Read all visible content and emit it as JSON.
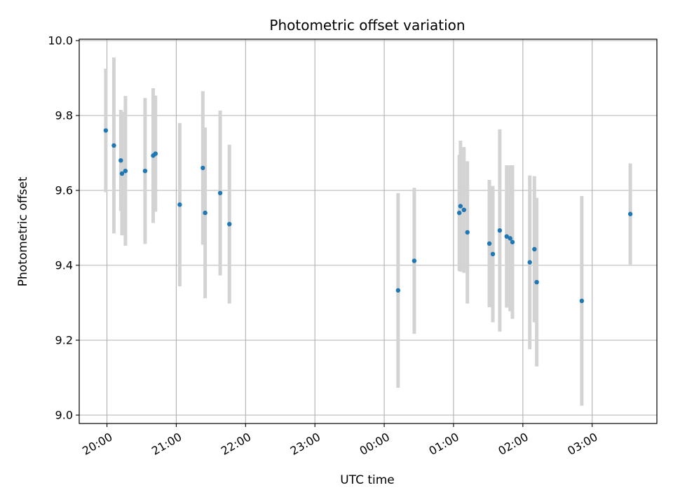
{
  "chart_data": {
    "type": "scatter",
    "title": "Photometric offset variation",
    "xlabel": "UTC time",
    "ylabel": "Photometric offset",
    "ylim": [
      9.0,
      10.0
    ],
    "xlim": [
      "19:36",
      "03:56"
    ],
    "grid": true,
    "legend": "none",
    "colors": {
      "point": "#1f77b4",
      "errorbar": "#d3d3d3",
      "grid": "#b0b0b0"
    },
    "x_ticks": [
      "20:00",
      "21:00",
      "22:00",
      "23:00",
      "00:00",
      "01:00",
      "02:00",
      "03:00"
    ],
    "y_ticks": [
      "9.0",
      "9.2",
      "9.4",
      "9.6",
      "9.8",
      "10.0"
    ],
    "points": [
      {
        "x": "19:59",
        "y": 9.76,
        "err": 0.165
      },
      {
        "x": "20:06",
        "y": 9.72,
        "err": 0.235
      },
      {
        "x": "20:12",
        "y": 9.68,
        "err": 0.135
      },
      {
        "x": "20:13",
        "y": 9.645,
        "err": 0.165
      },
      {
        "x": "20:16",
        "y": 9.652,
        "err": 0.2
      },
      {
        "x": "20:33",
        "y": 9.652,
        "err": 0.195
      },
      {
        "x": "20:40",
        "y": 9.693,
        "err": 0.18
      },
      {
        "x": "20:42",
        "y": 9.698,
        "err": 0.155
      },
      {
        "x": "21:03",
        "y": 9.562,
        "err": 0.218
      },
      {
        "x": "21:23",
        "y": 9.66,
        "err": 0.205
      },
      {
        "x": "21:25",
        "y": 9.54,
        "err": 0.228
      },
      {
        "x": "21:38",
        "y": 9.593,
        "err": 0.22
      },
      {
        "x": "21:46",
        "y": 9.51,
        "err": 0.212
      },
      {
        "x": "00:12",
        "y": 9.333,
        "err": 0.26
      },
      {
        "x": "00:26",
        "y": 9.412,
        "err": 0.195
      },
      {
        "x": "01:05",
        "y": 9.54,
        "err": 0.155
      },
      {
        "x": "01:06",
        "y": 9.558,
        "err": 0.175
      },
      {
        "x": "01:09",
        "y": 9.548,
        "err": 0.168
      },
      {
        "x": "01:12",
        "y": 9.488,
        "err": 0.19
      },
      {
        "x": "01:31",
        "y": 9.458,
        "err": 0.17
      },
      {
        "x": "01:34",
        "y": 9.43,
        "err": 0.182
      },
      {
        "x": "01:40",
        "y": 9.493,
        "err": 0.27
      },
      {
        "x": "01:46",
        "y": 9.477,
        "err": 0.19
      },
      {
        "x": "01:49",
        "y": 9.472,
        "err": 0.195
      },
      {
        "x": "01:51",
        "y": 9.462,
        "err": 0.205
      },
      {
        "x": "02:06",
        "y": 9.408,
        "err": 0.232
      },
      {
        "x": "02:10",
        "y": 9.443,
        "err": 0.195
      },
      {
        "x": "02:12",
        "y": 9.355,
        "err": 0.225
      },
      {
        "x": "02:51",
        "y": 9.305,
        "err": 0.28
      },
      {
        "x": "03:33",
        "y": 9.537,
        "err": 0.135
      }
    ]
  }
}
